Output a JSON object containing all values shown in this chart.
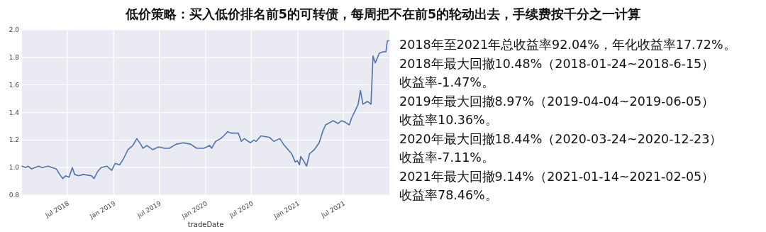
{
  "chart_data": {
    "type": "line",
    "title": "低价策略：买入低价排名前5的可转债，每周把不在前5的轮动出去，手续费按千分之一计算",
    "xlabel": "tradeDate",
    "x": [
      "2018-01-02",
      "2018-01-17",
      "2018-01-26",
      "2018-02-09",
      "2018-03-09",
      "2018-03-23",
      "2018-04-15",
      "2018-05-18",
      "2018-06-01",
      "2018-06-13",
      "2018-06-24",
      "2018-07-08",
      "2018-07-21",
      "2018-07-30",
      "2018-08-15",
      "2018-09-03",
      "2018-10-05",
      "2018-10-15",
      "2018-10-29",
      "2018-11-12",
      "2018-12-05",
      "2018-12-24",
      "2019-01-07",
      "2019-01-25",
      "2019-02-08",
      "2019-02-27",
      "2019-03-18",
      "2019-04-03",
      "2019-04-18",
      "2019-04-27",
      "2019-05-13",
      "2019-06-05",
      "2019-06-29",
      "2019-07-22",
      "2019-08-10",
      "2019-09-07",
      "2019-10-05",
      "2019-11-02",
      "2019-11-27",
      "2019-12-25",
      "2020-01-18",
      "2020-01-25",
      "2020-02-10",
      "2020-03-01",
      "2020-03-13",
      "2020-03-29",
      "2020-04-12",
      "2020-05-10",
      "2020-05-22",
      "2020-06-03",
      "2020-06-27",
      "2020-07-11",
      "2020-07-20",
      "2020-08-08",
      "2020-09-10",
      "2020-09-28",
      "2020-10-22",
      "2020-11-05",
      "2020-11-19",
      "2020-12-08",
      "2020-12-22",
      "2020-12-30",
      "2021-01-08",
      "2021-01-13",
      "2021-01-24",
      "2021-02-05",
      "2021-02-17",
      "2021-03-08",
      "2021-03-27",
      "2021-04-10",
      "2021-04-22",
      "2021-05-22",
      "2021-06-10",
      "2021-06-24",
      "2021-07-08",
      "2021-07-25",
      "2021-08-03",
      "2021-08-19",
      "2021-08-29",
      "2021-09-07",
      "2021-09-17",
      "2021-10-05",
      "2021-10-19",
      "2021-10-27",
      "2021-11-05",
      "2021-11-21",
      "2021-12-06",
      "2021-12-17",
      "2021-12-23",
      "2021-12-29"
    ],
    "series": [
      {
        "color": "#4c72b0",
        "values": [
          1.01,
          1.0,
          1.01,
          0.99,
          1.01,
          1.0,
          1.01,
          0.99,
          0.95,
          0.92,
          0.94,
          0.93,
          1.0,
          0.95,
          0.94,
          0.95,
          0.94,
          0.92,
          0.97,
          1.0,
          1.01,
          0.98,
          1.03,
          1.02,
          1.06,
          1.13,
          1.16,
          1.21,
          1.17,
          1.14,
          1.16,
          1.13,
          1.15,
          1.14,
          1.14,
          1.17,
          1.18,
          1.17,
          1.14,
          1.14,
          1.16,
          1.14,
          1.19,
          1.21,
          1.23,
          1.26,
          1.25,
          1.25,
          1.19,
          1.21,
          1.18,
          1.2,
          1.19,
          1.23,
          1.22,
          1.19,
          1.21,
          1.17,
          1.14,
          1.1,
          1.04,
          1.05,
          1.02,
          1.08,
          1.05,
          1.01,
          1.1,
          1.13,
          1.18,
          1.26,
          1.31,
          1.34,
          1.32,
          1.34,
          1.33,
          1.31,
          1.36,
          1.42,
          1.46,
          1.56,
          1.46,
          1.48,
          1.46,
          1.81,
          1.76,
          1.83,
          1.84,
          1.84,
          1.92,
          1.92
        ]
      }
    ],
    "xlim": [
      "2018-01-02",
      "2021-12-31"
    ],
    "xticks": [
      {
        "value": "2018-07-01",
        "label": "Jul 2018"
      },
      {
        "value": "2019-01-01",
        "label": "Jan 2019"
      },
      {
        "value": "2019-07-01",
        "label": "Jul 2019"
      },
      {
        "value": "2020-01-01",
        "label": "Jan 2020"
      },
      {
        "value": "2020-07-01",
        "label": "Jul 2020"
      },
      {
        "value": "2021-01-01",
        "label": "Jan 2021"
      },
      {
        "value": "2021-07-01",
        "label": "Jul 2021"
      }
    ],
    "ylim": [
      0.8,
      2.0
    ],
    "yticks": [
      0.8,
      {
        "value": 1,
        "label": "1.0"
      },
      1.2,
      1.4,
      1.6,
      1.8,
      {
        "value": 2,
        "label": "2.0"
      }
    ],
    "grid": true,
    "annotations": [
      "2018年至2021年总收益率92.04%，年化收益率17.72%。",
      "2018年最大回撤10.48%（2018-01-24~2018-6-15）",
      "收益率-1.47%。",
      "2019年最大回撤8.97%（2019-04-04~2019-06-05）",
      "收益率10.36%。",
      "2020年最大回撤18.44%（2020-03-24~2020-12-23）",
      "收益率-7.11%。",
      "2021年最大回撤9.14%（2021-01-14~2021-02-05）",
      "收益率78.46%。"
    ]
  }
}
